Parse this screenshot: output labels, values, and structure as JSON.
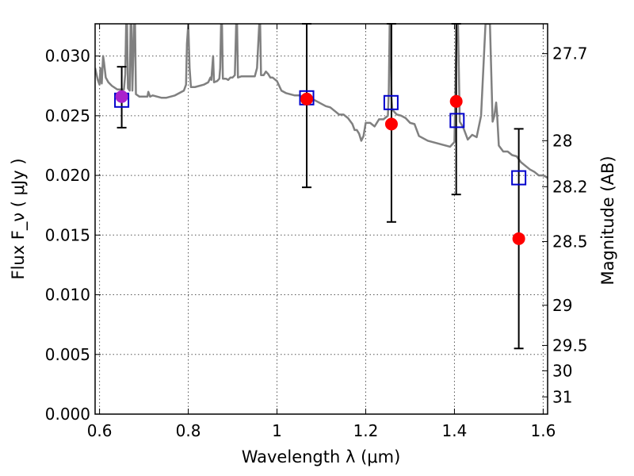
{
  "chart_data": {
    "type": "scatter",
    "xlabel": "Wavelength  λ (μm)",
    "ylabel": "Flux  F_ν  ( μJy )",
    "y2label": "Magnitude (AB)",
    "xlim": [
      0.59,
      1.61
    ],
    "ylim": [
      0.0,
      0.0327
    ],
    "grid": true,
    "x_ticks": [
      {
        "v": 0.6,
        "label": "0.6"
      },
      {
        "v": 0.8,
        "label": "0.8"
      },
      {
        "v": 1.0,
        "label": "1"
      },
      {
        "v": 1.2,
        "label": "1.2"
      },
      {
        "v": 1.4,
        "label": "1.4"
      },
      {
        "v": 1.6,
        "label": "1.6"
      }
    ],
    "y_ticks": [
      {
        "v": 0.0,
        "label": "0.000"
      },
      {
        "v": 0.005,
        "label": "0.005"
      },
      {
        "v": 0.01,
        "label": "0.010"
      },
      {
        "v": 0.015,
        "label": "0.015"
      },
      {
        "v": 0.02,
        "label": "0.020"
      },
      {
        "v": 0.025,
        "label": "0.025"
      },
      {
        "v": 0.03,
        "label": "0.030"
      }
    ],
    "y2_ticks": [
      {
        "mag": 27.7,
        "label": "27.7"
      },
      {
        "mag": 28.0,
        "label": "28"
      },
      {
        "mag": 28.2,
        "label": "28.2"
      },
      {
        "mag": 28.5,
        "label": "28.5"
      },
      {
        "mag": 29.0,
        "label": "29"
      },
      {
        "mag": 29.5,
        "label": "29.5"
      },
      {
        "mag": 30.0,
        "label": "30"
      },
      {
        "mag": 31.0,
        "label": "31"
      }
    ],
    "series": [
      {
        "kind": "model-spectrum-line",
        "color": "#808080",
        "points": [
          [
            0.59,
            0.029
          ],
          [
            0.596,
            0.028
          ],
          [
            0.6,
            0.0276
          ],
          [
            0.602,
            0.029
          ],
          [
            0.605,
            0.0277
          ],
          [
            0.608,
            0.03
          ],
          [
            0.61,
            0.0295
          ],
          [
            0.614,
            0.0282
          ],
          [
            0.62,
            0.0278
          ],
          [
            0.628,
            0.0275
          ],
          [
            0.636,
            0.0273
          ],
          [
            0.64,
            0.0272
          ],
          [
            0.645,
            0.0272
          ],
          [
            0.65,
            0.0272
          ],
          [
            0.655,
            0.0272
          ],
          [
            0.658,
            0.0285
          ],
          [
            0.66,
            0.0327
          ],
          [
            0.662,
            0.0327
          ],
          [
            0.664,
            0.0273
          ],
          [
            0.668,
            0.0271
          ],
          [
            0.67,
            0.0327
          ],
          [
            0.672,
            0.0327
          ],
          [
            0.674,
            0.0271
          ],
          [
            0.678,
            0.0327
          ],
          [
            0.68,
            0.0327
          ],
          [
            0.682,
            0.0268
          ],
          [
            0.69,
            0.0266
          ],
          [
            0.7,
            0.0266
          ],
          [
            0.708,
            0.0266
          ],
          [
            0.71,
            0.027
          ],
          [
            0.714,
            0.0266
          ],
          [
            0.72,
            0.0267
          ],
          [
            0.73,
            0.0266
          ],
          [
            0.74,
            0.0265
          ],
          [
            0.75,
            0.0265
          ],
          [
            0.76,
            0.0266
          ],
          [
            0.77,
            0.0267
          ],
          [
            0.78,
            0.0269
          ],
          [
            0.79,
            0.0271
          ],
          [
            0.795,
            0.0276
          ],
          [
            0.797,
            0.031
          ],
          [
            0.8,
            0.0327
          ],
          [
            0.803,
            0.029
          ],
          [
            0.806,
            0.0274
          ],
          [
            0.815,
            0.0274
          ],
          [
            0.825,
            0.0275
          ],
          [
            0.835,
            0.0276
          ],
          [
            0.845,
            0.0278
          ],
          [
            0.85,
            0.0282
          ],
          [
            0.852,
            0.028
          ],
          [
            0.856,
            0.03
          ],
          [
            0.858,
            0.0278
          ],
          [
            0.865,
            0.0279
          ],
          [
            0.87,
            0.0281
          ],
          [
            0.872,
            0.029
          ],
          [
            0.874,
            0.0327
          ],
          [
            0.876,
            0.0327
          ],
          [
            0.878,
            0.0281
          ],
          [
            0.885,
            0.0281
          ],
          [
            0.89,
            0.028
          ],
          [
            0.895,
            0.0282
          ],
          [
            0.9,
            0.0282
          ],
          [
            0.905,
            0.0284
          ],
          [
            0.908,
            0.0327
          ],
          [
            0.91,
            0.0327
          ],
          [
            0.912,
            0.0282
          ],
          [
            0.92,
            0.0283
          ],
          [
            0.93,
            0.0283
          ],
          [
            0.94,
            0.0283
          ],
          [
            0.95,
            0.0283
          ],
          [
            0.955,
            0.029
          ],
          [
            0.96,
            0.0327
          ],
          [
            0.962,
            0.0327
          ],
          [
            0.964,
            0.0284
          ],
          [
            0.97,
            0.0284
          ],
          [
            0.975,
            0.0287
          ],
          [
            0.98,
            0.0285
          ],
          [
            0.985,
            0.0282
          ],
          [
            0.99,
            0.0282
          ],
          [
            1.0,
            0.0279
          ],
          [
            1.01,
            0.0271
          ],
          [
            1.02,
            0.0269
          ],
          [
            1.03,
            0.0268
          ],
          [
            1.04,
            0.0267
          ],
          [
            1.05,
            0.0267
          ],
          [
            1.06,
            0.0266
          ],
          [
            1.07,
            0.0265
          ],
          [
            1.08,
            0.0264
          ],
          [
            1.09,
            0.0262
          ],
          [
            1.1,
            0.026
          ],
          [
            1.11,
            0.0258
          ],
          [
            1.12,
            0.0257
          ],
          [
            1.13,
            0.0254
          ],
          [
            1.14,
            0.0251
          ],
          [
            1.15,
            0.0251
          ],
          [
            1.16,
            0.0248
          ],
          [
            1.17,
            0.0243
          ],
          [
            1.175,
            0.0238
          ],
          [
            1.18,
            0.0238
          ],
          [
            1.185,
            0.0235
          ],
          [
            1.19,
            0.0229
          ],
          [
            1.195,
            0.0233
          ],
          [
            1.2,
            0.0244
          ],
          [
            1.21,
            0.0244
          ],
          [
            1.22,
            0.0241
          ],
          [
            1.23,
            0.0247
          ],
          [
            1.24,
            0.0247
          ],
          [
            1.25,
            0.025
          ],
          [
            1.252,
            0.027
          ],
          [
            1.254,
            0.0327
          ],
          [
            1.256,
            0.0327
          ],
          [
            1.258,
            0.0265
          ],
          [
            1.26,
            0.0255
          ],
          [
            1.27,
            0.0251
          ],
          [
            1.28,
            0.025
          ],
          [
            1.29,
            0.0248
          ],
          [
            1.3,
            0.0244
          ],
          [
            1.31,
            0.0243
          ],
          [
            1.32,
            0.0233
          ],
          [
            1.34,
            0.0229
          ],
          [
            1.36,
            0.0227
          ],
          [
            1.38,
            0.0225
          ],
          [
            1.39,
            0.0224
          ],
          [
            1.4,
            0.0228
          ],
          [
            1.405,
            0.0327
          ],
          [
            1.408,
            0.0327
          ],
          [
            1.412,
            0.0245
          ],
          [
            1.42,
            0.024
          ],
          [
            1.43,
            0.023
          ],
          [
            1.44,
            0.0234
          ],
          [
            1.45,
            0.0232
          ],
          [
            1.46,
            0.025
          ],
          [
            1.47,
            0.0327
          ],
          [
            1.48,
            0.0327
          ],
          [
            1.486,
            0.0245
          ],
          [
            1.49,
            0.025
          ],
          [
            1.494,
            0.0261
          ],
          [
            1.496,
            0.0252
          ],
          [
            1.5,
            0.0225
          ],
          [
            1.51,
            0.022
          ],
          [
            1.52,
            0.022
          ],
          [
            1.53,
            0.0217
          ],
          [
            1.54,
            0.0216
          ],
          [
            1.55,
            0.0211
          ],
          [
            1.56,
            0.0208
          ],
          [
            1.57,
            0.0205
          ],
          [
            1.58,
            0.0203
          ],
          [
            1.59,
            0.02
          ],
          [
            1.6,
            0.02
          ],
          [
            1.61,
            0.0198
          ]
        ]
      },
      {
        "kind": "model-photometry-open-squares",
        "color": "#0000cc",
        "points": [
          [
            0.65,
            0.0263
          ],
          [
            1.067,
            0.0265
          ],
          [
            1.257,
            0.0261
          ],
          [
            1.406,
            0.0246
          ],
          [
            1.545,
            0.0198
          ]
        ]
      },
      {
        "kind": "observed-filled-circles",
        "color": "#ff0000",
        "points": [
          {
            "x": 0.65,
            "y": 0.0266,
            "yerr_low": 0.024,
            "yerr_high": 0.0291,
            "color": "#aa22cc"
          },
          {
            "x": 1.067,
            "y": 0.0264,
            "yerr_low": 0.019,
            "yerr_high": 0.0327
          },
          {
            "x": 1.258,
            "y": 0.0243,
            "yerr_low": 0.0161,
            "yerr_high": 0.0327
          },
          {
            "x": 1.404,
            "y": 0.0262,
            "yerr_low": 0.0184,
            "yerr_high": 0.0327
          },
          {
            "x": 1.545,
            "y": 0.0147,
            "yerr_low": 0.0055,
            "yerr_high": 0.0239
          }
        ]
      }
    ]
  }
}
